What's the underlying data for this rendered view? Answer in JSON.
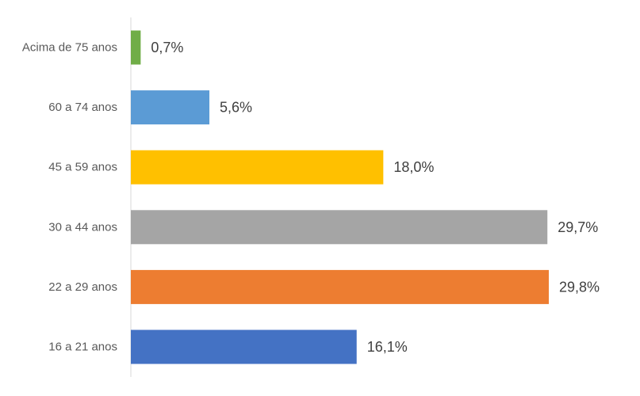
{
  "chart_data": {
    "type": "bar",
    "orientation": "horizontal",
    "categories": [
      "Acima de 75 anos",
      "60 a 74 anos",
      "45 a 59 anos",
      "30 a 44 anos",
      "22 a 29 anos",
      "16 a 21 anos"
    ],
    "values": [
      0.7,
      5.6,
      18.0,
      29.7,
      29.8,
      16.1
    ],
    "value_labels": [
      "0,7%",
      "5,6%",
      "18,0%",
      "29,7%",
      "29,8%",
      "16,1%"
    ],
    "colors": [
      "#70ad47",
      "#5b9bd5",
      "#ffc000",
      "#a5a5a5",
      "#ed7d31",
      "#4472c4"
    ],
    "title": "",
    "xlabel": "",
    "ylabel": "",
    "grid": false,
    "legend": "none"
  }
}
